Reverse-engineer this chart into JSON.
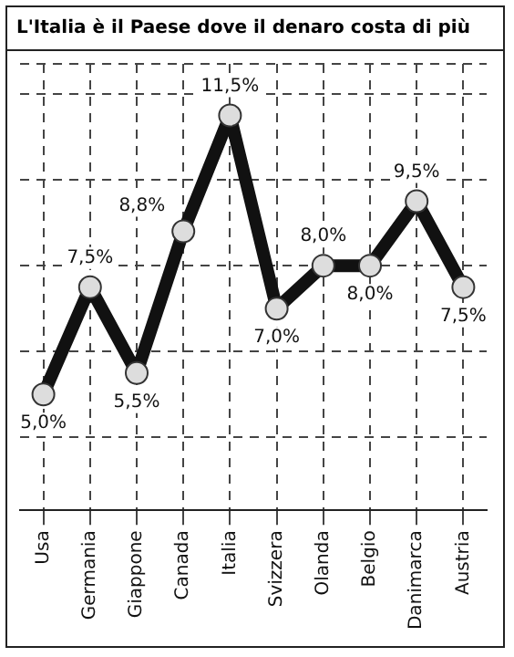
{
  "chart_data": {
    "type": "line",
    "title": "L'Italia è il Paese dove il denaro costa di più",
    "categories": [
      "Usa",
      "Germania",
      "Giappone",
      "Canada",
      "Italia",
      "Svizzera",
      "Olanda",
      "Belgio",
      "Danimarca",
      "Austria"
    ],
    "series": [
      {
        "color": "#111111",
        "values": [
          5.0,
          7.5,
          5.5,
          8.8,
          11.5,
          7.0,
          8.0,
          8.0,
          9.5,
          7.5
        ],
        "value_labels": [
          "5,0%",
          "7,5%",
          "5,5%",
          "8,8%",
          "11,5%",
          "7,0%",
          "8,0%",
          "8,0%",
          "9,5%",
          "7,5%"
        ]
      }
    ],
    "ylim": [
      2.3,
      12.7
    ],
    "tick_labels": "x",
    "grid": true,
    "marker": "circle",
    "line_style": "solid",
    "legend": false
  }
}
